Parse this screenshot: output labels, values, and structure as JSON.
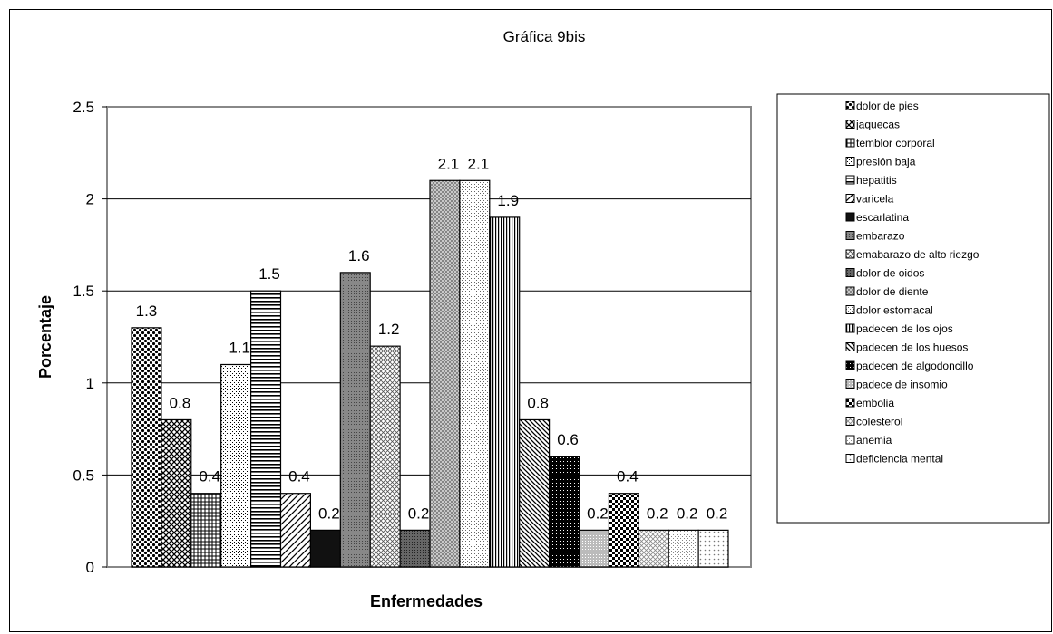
{
  "chart_data": {
    "type": "bar",
    "title": "Gráfica 9bis",
    "xlabel": "Enfermedades",
    "ylabel": "Porcentaje",
    "ylim": [
      0,
      2.5
    ],
    "yticks": [
      "0",
      "0.5",
      "1",
      "1.5",
      "2",
      "2.5"
    ],
    "grid": true,
    "legend_position": "right",
    "series": [
      {
        "name": "dolor de  pies",
        "value": 1.3,
        "label": "1.3"
      },
      {
        "name": "jaquecas",
        "value": 0.8,
        "label": "0.8"
      },
      {
        "name": "temblor corporal",
        "value": 0.4,
        "label": "0.4"
      },
      {
        "name": "presión baja",
        "value": 1.1,
        "label": "1.1"
      },
      {
        "name": "hepatitis",
        "value": 1.5,
        "label": "1.5"
      },
      {
        "name": "varicela",
        "value": 0.4,
        "label": "0.4"
      },
      {
        "name": "escarlatina",
        "value": 0.2,
        "label": "0.2"
      },
      {
        "name": "embarazo",
        "value": 1.6,
        "label": "1.6"
      },
      {
        "name": "emabarazo de alto riezgo",
        "value": 1.2,
        "label": "1.2"
      },
      {
        "name": "dolor de oidos",
        "value": 0.2,
        "label": "0.2"
      },
      {
        "name": "dolor de diente",
        "value": 2.1,
        "label": "2.1"
      },
      {
        "name": "dolor estomacal",
        "value": 2.1,
        "label": "2.1"
      },
      {
        "name": "padecen de los ojos",
        "value": 1.9,
        "label": "1.9"
      },
      {
        "name": "padecen de los huesos",
        "value": 0.8,
        "label": "0.8"
      },
      {
        "name": "padecen de algodoncillo",
        "value": 0.6,
        "label": "0.6"
      },
      {
        "name": "padece de insomio",
        "value": 0.2,
        "label": "0.2"
      },
      {
        "name": "embolia",
        "value": 0.4,
        "label": "0.4"
      },
      {
        "name": "colesterol",
        "value": 0.2,
        "label": "0.2"
      },
      {
        "name": "anemia",
        "value": 0.2,
        "label": "0.2"
      },
      {
        "name": "deficiencia mental",
        "value": 0.2,
        "label": "0.2"
      }
    ]
  }
}
